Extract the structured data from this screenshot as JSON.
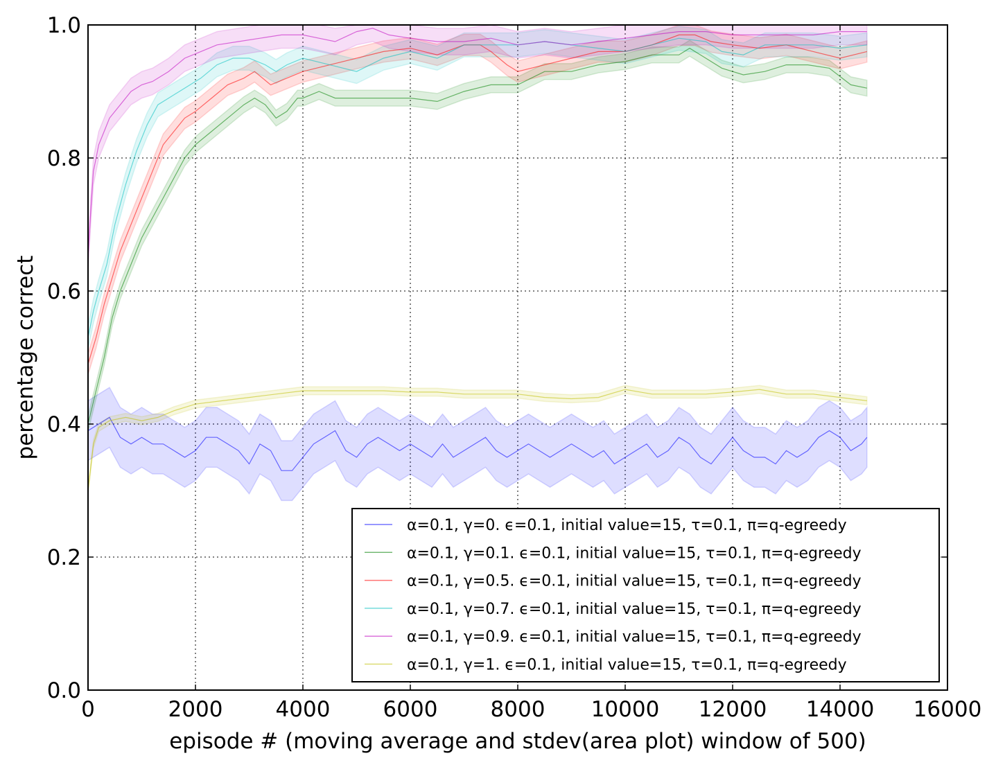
{
  "chart_data": {
    "type": "line",
    "xlabel": "episode # (moving average and stdev(area plot) window of 500)",
    "ylabel": "percentage correct",
    "xlim": [
      0,
      16000
    ],
    "ylim": [
      0.0,
      1.0
    ],
    "x_ticks": [
      "0",
      "2000",
      "4000",
      "6000",
      "8000",
      "10000",
      "12000",
      "14000",
      "16000"
    ],
    "y_ticks": [
      "0.0",
      "0.2",
      "0.4",
      "0.6",
      "0.8",
      "1.0"
    ],
    "grid": true,
    "legend_position": "lower-right",
    "series": [
      {
        "name": "α=0.1, γ=0. ϵ=0.1, initial value=15, τ=0.1, π=q-egreedy",
        "color": "#0000ff",
        "band": 0.045,
        "x": [
          0,
          200,
          400,
          600,
          800,
          1000,
          1200,
          1400,
          1600,
          1800,
          2000,
          2200,
          2400,
          2600,
          2800,
          3000,
          3200,
          3400,
          3600,
          3800,
          4000,
          4200,
          4400,
          4600,
          4800,
          5000,
          5200,
          5400,
          5600,
          5800,
          6000,
          6200,
          6400,
          6600,
          6800,
          7000,
          7200,
          7400,
          7600,
          7800,
          8000,
          8200,
          8400,
          8600,
          8800,
          9000,
          9200,
          9400,
          9600,
          9800,
          10000,
          10200,
          10400,
          10600,
          10800,
          11000,
          11200,
          11400,
          11600,
          11800,
          12000,
          12200,
          12400,
          12600,
          12800,
          13000,
          13200,
          13400,
          13600,
          13800,
          14000,
          14200,
          14400,
          14500
        ],
        "y": [
          0.39,
          0.4,
          0.41,
          0.38,
          0.37,
          0.38,
          0.37,
          0.37,
          0.36,
          0.35,
          0.36,
          0.38,
          0.38,
          0.37,
          0.36,
          0.34,
          0.37,
          0.36,
          0.33,
          0.33,
          0.35,
          0.37,
          0.38,
          0.39,
          0.36,
          0.35,
          0.37,
          0.38,
          0.37,
          0.36,
          0.37,
          0.36,
          0.35,
          0.37,
          0.35,
          0.36,
          0.37,
          0.38,
          0.36,
          0.35,
          0.36,
          0.37,
          0.36,
          0.35,
          0.36,
          0.37,
          0.36,
          0.35,
          0.36,
          0.34,
          0.35,
          0.36,
          0.37,
          0.35,
          0.36,
          0.38,
          0.37,
          0.35,
          0.34,
          0.36,
          0.38,
          0.36,
          0.35,
          0.35,
          0.34,
          0.36,
          0.35,
          0.36,
          0.38,
          0.39,
          0.38,
          0.36,
          0.37,
          0.38
        ]
      },
      {
        "name": "α=0.1, γ=0.1. ϵ=0.1, initial value=15, τ=0.1, π=q-egreedy",
        "color": "#008000",
        "band": 0.012,
        "x": [
          0,
          150,
          300,
          450,
          600,
          800,
          1000,
          1200,
          1400,
          1600,
          1800,
          2000,
          2300,
          2600,
          2900,
          3100,
          3300,
          3500,
          3700,
          3900,
          4000,
          4300,
          4600,
          5000,
          5500,
          6000,
          6500,
          7000,
          7500,
          8000,
          8500,
          9000,
          9500,
          10000,
          10500,
          11000,
          11200,
          11500,
          11800,
          12200,
          12600,
          13000,
          13400,
          13800,
          14200,
          14500
        ],
        "y": [
          0.4,
          0.45,
          0.5,
          0.56,
          0.6,
          0.64,
          0.68,
          0.71,
          0.74,
          0.77,
          0.8,
          0.82,
          0.84,
          0.86,
          0.88,
          0.89,
          0.88,
          0.86,
          0.87,
          0.89,
          0.89,
          0.9,
          0.89,
          0.89,
          0.89,
          0.89,
          0.885,
          0.9,
          0.91,
          0.91,
          0.93,
          0.93,
          0.94,
          0.945,
          0.955,
          0.955,
          0.965,
          0.95,
          0.935,
          0.925,
          0.93,
          0.94,
          0.94,
          0.935,
          0.91,
          0.905
        ]
      },
      {
        "name": "α=0.1, γ=0.5. ϵ=0.1, initial value=15, τ=0.1, π=q-egreedy",
        "color": "#ff0000",
        "band": 0.016,
        "x": [
          0,
          150,
          300,
          450,
          600,
          800,
          1000,
          1200,
          1400,
          1600,
          1800,
          2000,
          2300,
          2600,
          2900,
          3100,
          3400,
          3700,
          4000,
          4500,
          5000,
          5500,
          6000,
          6500,
          7000,
          7300,
          7500,
          7800,
          8000,
          8500,
          9000,
          9500,
          10000,
          10500,
          11000,
          11300,
          11600,
          12000,
          12500,
          13000,
          13500,
          14000,
          14500
        ],
        "y": [
          0.49,
          0.53,
          0.58,
          0.62,
          0.66,
          0.7,
          0.74,
          0.78,
          0.82,
          0.84,
          0.86,
          0.87,
          0.89,
          0.91,
          0.92,
          0.93,
          0.91,
          0.92,
          0.93,
          0.94,
          0.95,
          0.96,
          0.965,
          0.955,
          0.97,
          0.97,
          0.96,
          0.94,
          0.93,
          0.94,
          0.95,
          0.96,
          0.96,
          0.97,
          0.985,
          0.985,
          0.975,
          0.97,
          0.965,
          0.97,
          0.96,
          0.95,
          0.96
        ]
      },
      {
        "name": "α=0.1, γ=0.7. ϵ=0.1, initial value=15, τ=0.1, π=q-egreedy",
        "color": "#00bfbf",
        "band": 0.018,
        "x": [
          0,
          100,
          200,
          350,
          500,
          700,
          900,
          1100,
          1300,
          1500,
          1700,
          1900,
          2100,
          2400,
          2700,
          3000,
          3300,
          3500,
          3700,
          4000,
          4500,
          5000,
          5500,
          6000,
          6500,
          7000,
          7500,
          8000,
          8500,
          9000,
          9500,
          10000,
          10500,
          11000,
          11500,
          11800,
          12200,
          12600,
          13000,
          13500,
          14000,
          14500
        ],
        "y": [
          0.53,
          0.57,
          0.6,
          0.64,
          0.7,
          0.76,
          0.81,
          0.85,
          0.88,
          0.89,
          0.9,
          0.91,
          0.92,
          0.94,
          0.95,
          0.95,
          0.94,
          0.93,
          0.94,
          0.95,
          0.94,
          0.93,
          0.95,
          0.96,
          0.95,
          0.97,
          0.97,
          0.97,
          0.975,
          0.97,
          0.965,
          0.96,
          0.97,
          0.98,
          0.975,
          0.96,
          0.955,
          0.97,
          0.97,
          0.97,
          0.965,
          0.97
        ]
      },
      {
        "name": "α=0.1, γ=0.9. ϵ=0.1, initial value=15, τ=0.1, π=q-egreedy",
        "color": "#bf00bf",
        "band": 0.02,
        "x": [
          0,
          50,
          100,
          200,
          300,
          400,
          600,
          800,
          1000,
          1200,
          1500,
          1800,
          2100,
          2400,
          2800,
          3200,
          3600,
          4000,
          4300,
          4600,
          5000,
          5300,
          5600,
          6000,
          6500,
          7000,
          7500,
          8000,
          8500,
          9000,
          9500,
          10000,
          10500,
          11000,
          11500,
          12000,
          12500,
          13000,
          13500,
          14000,
          14500
        ],
        "y": [
          0.65,
          0.72,
          0.78,
          0.82,
          0.84,
          0.86,
          0.88,
          0.9,
          0.91,
          0.915,
          0.93,
          0.95,
          0.96,
          0.97,
          0.975,
          0.98,
          0.985,
          0.985,
          0.98,
          0.975,
          0.99,
          0.995,
          0.985,
          0.98,
          0.975,
          0.975,
          0.98,
          0.97,
          0.975,
          0.97,
          0.975,
          0.98,
          0.985,
          0.99,
          0.99,
          0.985,
          0.985,
          0.985,
          0.985,
          0.99,
          0.99
        ]
      },
      {
        "name": "α=0.1, γ=1. ϵ=0.1, initial value=15, τ=0.1, π=q-egreedy",
        "color": "#bfbf00",
        "band": 0.006,
        "x": [
          0,
          100,
          200,
          400,
          700,
          1000,
          1300,
          1600,
          2000,
          2500,
          3000,
          3500,
          4000,
          4500,
          5000,
          5500,
          6000,
          6500,
          7000,
          7500,
          8000,
          8500,
          9000,
          9500,
          10000,
          10500,
          11000,
          11500,
          12000,
          12500,
          13000,
          13500,
          14000,
          14500
        ],
        "y": [
          0.3,
          0.37,
          0.395,
          0.405,
          0.41,
          0.405,
          0.41,
          0.42,
          0.43,
          0.435,
          0.44,
          0.445,
          0.45,
          0.45,
          0.45,
          0.45,
          0.448,
          0.448,
          0.445,
          0.445,
          0.445,
          0.44,
          0.438,
          0.44,
          0.452,
          0.445,
          0.445,
          0.445,
          0.448,
          0.452,
          0.445,
          0.445,
          0.44,
          0.435
        ]
      }
    ]
  }
}
